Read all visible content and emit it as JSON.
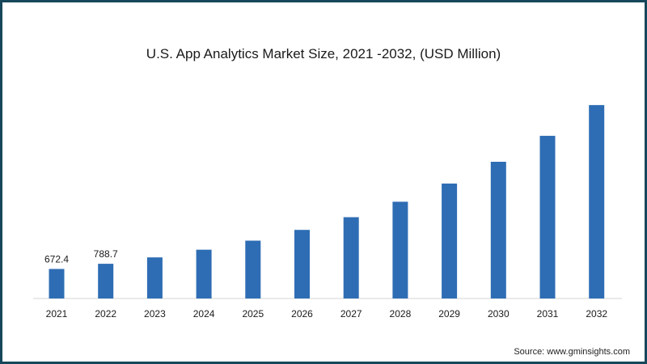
{
  "chart_data": {
    "type": "bar",
    "title": "U.S. App Analytics Market Size, 2021 -2032, (USD Million)",
    "xlabel": "",
    "ylabel": "",
    "categories": [
      "2021",
      "2022",
      "2023",
      "2024",
      "2025",
      "2026",
      "2027",
      "2028",
      "2029",
      "2030",
      "2031",
      "2032"
    ],
    "values": [
      672.4,
      788.7,
      935,
      1110,
      1315,
      1560,
      1850,
      2200,
      2615,
      3110,
      3700,
      4400
    ],
    "data_labels": [
      "672.4",
      "788.7",
      "",
      "",
      "",
      "",
      "",
      "",
      "",
      "",
      "",
      ""
    ],
    "ylim": [
      0,
      4600
    ],
    "grid": false,
    "legend": "none",
    "bar_color": "#2e6db4"
  },
  "source": "Source: www.gminsights.com"
}
